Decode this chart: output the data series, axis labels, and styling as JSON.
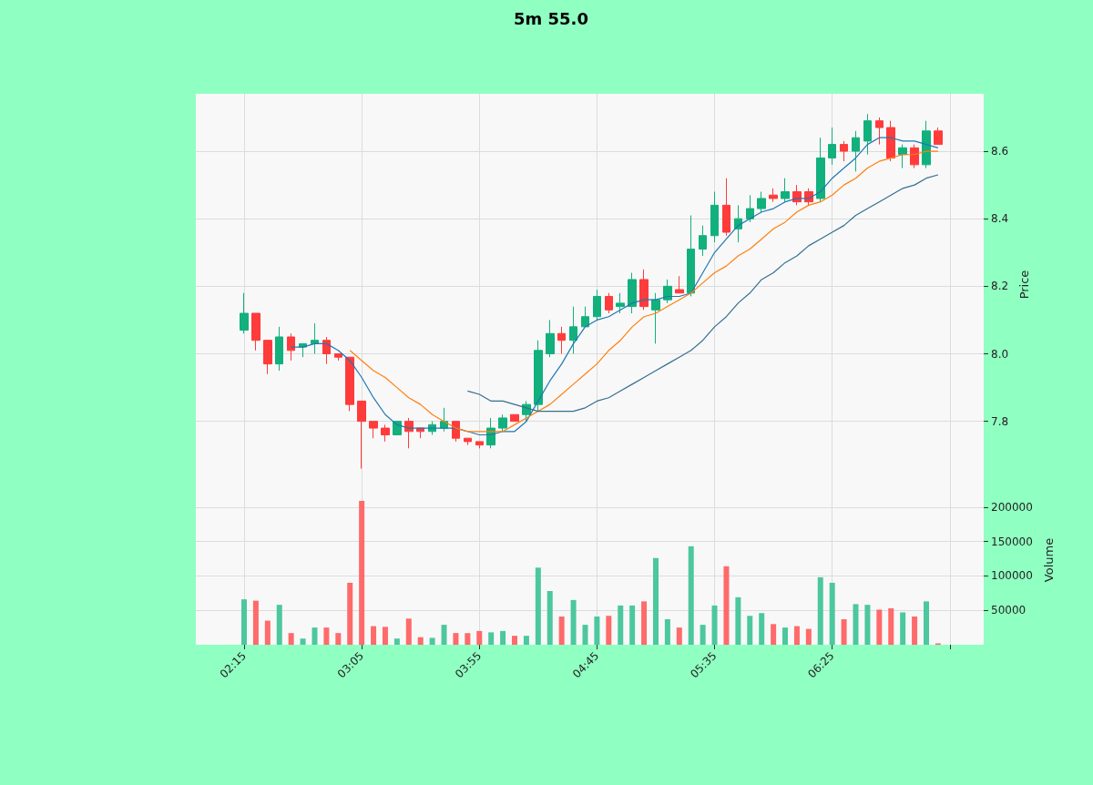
{
  "chart_data": [
    {
      "type": "candlestick",
      "title": "5m 55.0",
      "ylabel": "Price",
      "tick_labels": "y",
      "grid": true,
      "x": [
        2.25,
        2.3333,
        2.4167,
        2.5,
        2.5833,
        2.6667,
        2.75,
        2.8333,
        2.9167,
        3.0,
        3.0833,
        3.1667,
        3.25,
        3.3333,
        3.4167,
        3.5,
        3.5833,
        3.6667,
        3.75,
        3.8333,
        3.9167,
        4.0,
        4.0833,
        4.1667,
        4.25,
        4.3333,
        4.4167,
        4.5,
        4.5833,
        4.6667,
        4.75,
        4.8333,
        4.9167,
        5.0,
        5.0833,
        5.1667,
        5.25,
        5.3333,
        5.4167,
        5.5,
        5.5833,
        5.6667,
        5.75,
        5.8333,
        5.9167,
        6.0,
        6.0833,
        6.1667,
        6.25,
        6.3333,
        6.4167,
        6.5,
        6.5833,
        6.6667,
        6.75,
        6.8333,
        6.9167,
        7.0,
        7.0833,
        7.1667
      ],
      "ohlc": [
        [
          8.07,
          8.18,
          8.06,
          8.12
        ],
        [
          8.12,
          8.12,
          8.01,
          8.04
        ],
        [
          8.04,
          8.04,
          7.94,
          7.97
        ],
        [
          7.97,
          8.08,
          7.95,
          8.05
        ],
        [
          8.05,
          8.06,
          7.98,
          8.01
        ],
        [
          8.02,
          8.03,
          7.99,
          8.03
        ],
        [
          8.03,
          8.09,
          8.0,
          8.04
        ],
        [
          8.04,
          8.05,
          7.97,
          8.0
        ],
        [
          8.0,
          8.0,
          7.98,
          7.99
        ],
        [
          7.99,
          7.99,
          7.83,
          7.85
        ],
        [
          7.86,
          7.86,
          7.66,
          7.8
        ],
        [
          7.8,
          7.8,
          7.75,
          7.78
        ],
        [
          7.78,
          7.79,
          7.74,
          7.76
        ],
        [
          7.76,
          7.8,
          7.76,
          7.8
        ],
        [
          7.8,
          7.81,
          7.72,
          7.77
        ],
        [
          7.78,
          7.78,
          7.75,
          7.77
        ],
        [
          7.77,
          7.8,
          7.76,
          7.79
        ],
        [
          7.78,
          7.84,
          7.77,
          7.8
        ],
        [
          7.8,
          7.8,
          7.74,
          7.75
        ],
        [
          7.75,
          7.75,
          7.73,
          7.74
        ],
        [
          7.74,
          7.74,
          7.72,
          7.73
        ],
        [
          7.73,
          7.81,
          7.72,
          7.78
        ],
        [
          7.78,
          7.82,
          7.77,
          7.81
        ],
        [
          7.82,
          7.82,
          7.8,
          7.8
        ],
        [
          7.82,
          7.86,
          7.8,
          7.85
        ],
        [
          7.85,
          8.04,
          7.83,
          8.01
        ],
        [
          8.0,
          8.1,
          7.99,
          8.06
        ],
        [
          8.06,
          8.08,
          8.0,
          8.04
        ],
        [
          8.04,
          8.14,
          8.0,
          8.08
        ],
        [
          8.08,
          8.14,
          8.08,
          8.11
        ],
        [
          8.11,
          8.19,
          8.1,
          8.17
        ],
        [
          8.17,
          8.18,
          8.12,
          8.13
        ],
        [
          8.14,
          8.18,
          8.12,
          8.15
        ],
        [
          8.14,
          8.24,
          8.12,
          8.22
        ],
        [
          8.22,
          8.25,
          8.13,
          8.14
        ],
        [
          8.13,
          8.18,
          8.03,
          8.16
        ],
        [
          8.16,
          8.22,
          8.15,
          8.2
        ],
        [
          8.19,
          8.23,
          8.18,
          8.18
        ],
        [
          8.18,
          8.41,
          8.17,
          8.31
        ],
        [
          8.31,
          8.38,
          8.29,
          8.35
        ],
        [
          8.35,
          8.48,
          8.33,
          8.44
        ],
        [
          8.44,
          8.52,
          8.35,
          8.36
        ],
        [
          8.37,
          8.44,
          8.33,
          8.4
        ],
        [
          8.4,
          8.47,
          8.39,
          8.43
        ],
        [
          8.43,
          8.48,
          8.42,
          8.46
        ],
        [
          8.47,
          8.49,
          8.45,
          8.46
        ],
        [
          8.46,
          8.52,
          8.45,
          8.48
        ],
        [
          8.48,
          8.5,
          8.44,
          8.45
        ],
        [
          8.48,
          8.49,
          8.44,
          8.45
        ],
        [
          8.46,
          8.64,
          8.45,
          8.58
        ],
        [
          8.58,
          8.67,
          8.56,
          8.62
        ],
        [
          8.62,
          8.63,
          8.57,
          8.6
        ],
        [
          8.6,
          8.66,
          8.54,
          8.64
        ],
        [
          8.63,
          8.71,
          8.59,
          8.69
        ],
        [
          8.69,
          8.7,
          8.62,
          8.67
        ],
        [
          8.67,
          8.69,
          8.57,
          8.58
        ],
        [
          8.59,
          8.62,
          8.55,
          8.61
        ],
        [
          8.61,
          8.62,
          8.55,
          8.56
        ],
        [
          8.56,
          8.69,
          8.55,
          8.66
        ],
        [
          8.66,
          8.67,
          8.62,
          8.62
        ]
      ],
      "colors": [
        "#12b07c",
        "#ff3b3b",
        "#ff3b3b",
        "#12b07c",
        "#ff3b3b",
        "#12b07c",
        "#12b07c",
        "#ff3b3b",
        "#ff3b3b",
        "#ff3b3b",
        "#ff3b3b",
        "#ff3b3b",
        "#ff3b3b",
        "#12b07c",
        "#ff3b3b",
        "#ff3b3b",
        "#12b07c",
        "#12b07c",
        "#ff3b3b",
        "#ff3b3b",
        "#ff3b3b",
        "#12b07c",
        "#12b07c",
        "#ff3b3b",
        "#12b07c",
        "#12b07c",
        "#12b07c",
        "#ff3b3b",
        "#12b07c",
        "#12b07c",
        "#12b07c",
        "#ff3b3b",
        "#12b07c",
        "#12b07c",
        "#ff3b3b",
        "#12b07c",
        "#12b07c",
        "#ff3b3b",
        "#12b07c",
        "#12b07c",
        "#12b07c",
        "#ff3b3b",
        "#12b07c",
        "#12b07c",
        "#12b07c",
        "#ff3b3b",
        "#12b07c",
        "#ff3b3b",
        "#ff3b3b",
        "#12b07c",
        "#12b07c",
        "#ff3b3b",
        "#12b07c",
        "#12b07c",
        "#ff3b3b",
        "#ff3b3b",
        "#12b07c",
        "#ff3b3b",
        "#12b07c",
        "#ff3b3b"
      ],
      "series": [
        {
          "type": "line",
          "color": "#1f77b4",
          "values": [
            null,
            null,
            null,
            null,
            8.02,
            8.02,
            8.03,
            8.03,
            8.01,
            7.98,
            7.93,
            7.87,
            7.82,
            7.79,
            7.78,
            7.78,
            7.78,
            7.78,
            7.78,
            7.77,
            7.76,
            7.76,
            7.77,
            7.77,
            7.8,
            7.86,
            7.92,
            7.97,
            8.03,
            8.08,
            8.1,
            8.11,
            8.13,
            8.15,
            8.16,
            8.16,
            8.17,
            8.17,
            8.18,
            8.24,
            8.3,
            8.34,
            8.38,
            8.4,
            8.42,
            8.43,
            8.45,
            8.46,
            8.46,
            8.48,
            8.52,
            8.55,
            8.58,
            8.62,
            8.64,
            8.64,
            8.63,
            8.63,
            8.62,
            8.61
          ]
        },
        {
          "type": "line",
          "color": "#ff7f0e",
          "values": [
            null,
            null,
            null,
            null,
            null,
            null,
            null,
            null,
            null,
            8.01,
            7.98,
            7.95,
            7.93,
            7.9,
            7.87,
            7.85,
            7.82,
            7.8,
            7.78,
            7.77,
            7.77,
            7.77,
            7.77,
            7.79,
            7.81,
            7.83,
            7.85,
            7.88,
            7.91,
            7.94,
            7.97,
            8.01,
            8.04,
            8.08,
            8.11,
            8.12,
            8.14,
            8.16,
            8.18,
            8.21,
            8.24,
            8.26,
            8.29,
            8.31,
            8.34,
            8.37,
            8.39,
            8.42,
            8.44,
            8.45,
            8.47,
            8.5,
            8.52,
            8.55,
            8.57,
            8.58,
            8.59,
            8.59,
            8.6,
            8.6
          ]
        },
        {
          "type": "line",
          "color": "#356f8f",
          "values": [
            null,
            null,
            null,
            null,
            null,
            null,
            null,
            null,
            null,
            null,
            null,
            null,
            null,
            null,
            null,
            null,
            null,
            null,
            null,
            7.89,
            7.88,
            7.86,
            7.86,
            7.85,
            7.84,
            7.83,
            7.83,
            7.83,
            7.83,
            7.84,
            7.86,
            7.87,
            7.89,
            7.91,
            7.93,
            7.95,
            7.97,
            7.99,
            8.01,
            8.04,
            8.08,
            8.11,
            8.15,
            8.18,
            8.22,
            8.24,
            8.27,
            8.29,
            8.32,
            8.34,
            8.36,
            8.38,
            8.41,
            8.43,
            8.45,
            8.47,
            8.49,
            8.5,
            8.52,
            8.53
          ]
        }
      ],
      "xlim": [
        1.908,
        7.49
      ],
      "xticks": [
        {
          "value": 2.25,
          "label": null
        },
        {
          "value": 3.0833,
          "label": null
        },
        {
          "value": 3.9167,
          "label": null
        },
        {
          "value": 4.75,
          "label": null
        },
        {
          "value": 5.5833,
          "label": null
        },
        {
          "value": 6.4167,
          "label": null
        },
        {
          "value": 7.25,
          "label": null
        }
      ],
      "ylim": [
        7.64,
        8.77
      ],
      "yticks": [
        {
          "value": 7.8,
          "label": "7.8"
        },
        {
          "value": 8.0,
          "label": "8.0"
        },
        {
          "value": 8.2,
          "label": "8.2"
        },
        {
          "value": 8.4,
          "label": "8.4"
        },
        {
          "value": 8.6,
          "label": "8.6"
        }
      ]
    },
    {
      "type": "bar",
      "ylabel": "Volume",
      "grid": true,
      "x": [
        2.25,
        2.3333,
        2.4167,
        2.5,
        2.5833,
        2.6667,
        2.75,
        2.8333,
        2.9167,
        3.0,
        3.0833,
        3.1667,
        3.25,
        3.3333,
        3.4167,
        3.5,
        3.5833,
        3.6667,
        3.75,
        3.8333,
        3.9167,
        4.0,
        4.0833,
        4.1667,
        4.25,
        4.3333,
        4.4167,
        4.5,
        4.5833,
        4.6667,
        4.75,
        4.8333,
        4.9167,
        5.0,
        5.0833,
        5.1667,
        5.25,
        5.3333,
        5.4167,
        5.5,
        5.5833,
        5.6667,
        5.75,
        5.8333,
        5.9167,
        6.0,
        6.0833,
        6.1667,
        6.25,
        6.3333,
        6.4167,
        6.5,
        6.5833,
        6.6667,
        6.75,
        6.8333,
        6.9167,
        7.0,
        7.0833,
        7.1667
      ],
      "values": [
        66000,
        64000,
        35000,
        58000,
        17000,
        9000,
        25000,
        25000,
        17000,
        90000,
        209000,
        27000,
        26000,
        9000,
        38000,
        11000,
        10000,
        29000,
        17000,
        17000,
        20000,
        18000,
        20000,
        13000,
        13000,
        112000,
        78000,
        41000,
        65000,
        29000,
        41000,
        42000,
        57000,
        57000,
        63000,
        126000,
        37000,
        25000,
        143000,
        29000,
        57000,
        114000,
        69000,
        42000,
        46000,
        30000,
        25000,
        27000,
        23000,
        98000,
        90000,
        37000,
        59000,
        58000,
        51000,
        53000,
        47000,
        41000,
        63000,
        2000
      ],
      "colors": [
        "#4cc79e",
        "#ff6a6a",
        "#ff6a6a",
        "#4cc79e",
        "#ff6a6a",
        "#4cc79e",
        "#4cc79e",
        "#ff6a6a",
        "#ff6a6a",
        "#ff6a6a",
        "#ff6a6a",
        "#ff6a6a",
        "#ff6a6a",
        "#4cc79e",
        "#ff6a6a",
        "#ff6a6a",
        "#4cc79e",
        "#4cc79e",
        "#ff6a6a",
        "#ff6a6a",
        "#ff6a6a",
        "#4cc79e",
        "#4cc79e",
        "#ff6a6a",
        "#4cc79e",
        "#4cc79e",
        "#4cc79e",
        "#ff6a6a",
        "#4cc79e",
        "#4cc79e",
        "#4cc79e",
        "#ff6a6a",
        "#4cc79e",
        "#4cc79e",
        "#ff6a6a",
        "#4cc79e",
        "#4cc79e",
        "#ff6a6a",
        "#4cc79e",
        "#4cc79e",
        "#4cc79e",
        "#ff6a6a",
        "#4cc79e",
        "#4cc79e",
        "#4cc79e",
        "#ff6a6a",
        "#4cc79e",
        "#ff6a6a",
        "#ff6a6a",
        "#4cc79e",
        "#4cc79e",
        "#ff6a6a",
        "#4cc79e",
        "#4cc79e",
        "#ff6a6a",
        "#ff6a6a",
        "#4cc79e",
        "#ff6a6a",
        "#4cc79e",
        "#ff6a6a"
      ],
      "xlim": [
        1.908,
        7.49
      ],
      "xticks": [
        {
          "value": 2.25,
          "label": "02:15"
        },
        {
          "value": 3.0833,
          "label": "03:05"
        },
        {
          "value": 3.9167,
          "label": "03:55"
        },
        {
          "value": 4.75,
          "label": "04:45"
        },
        {
          "value": 5.5833,
          "label": "05:35"
        },
        {
          "value": 6.4167,
          "label": "06:25"
        },
        {
          "value": 7.25,
          "label": null
        }
      ],
      "ylim": [
        0,
        246000
      ],
      "yticks": [
        50000,
        100000,
        150000,
        200000
      ]
    }
  ]
}
